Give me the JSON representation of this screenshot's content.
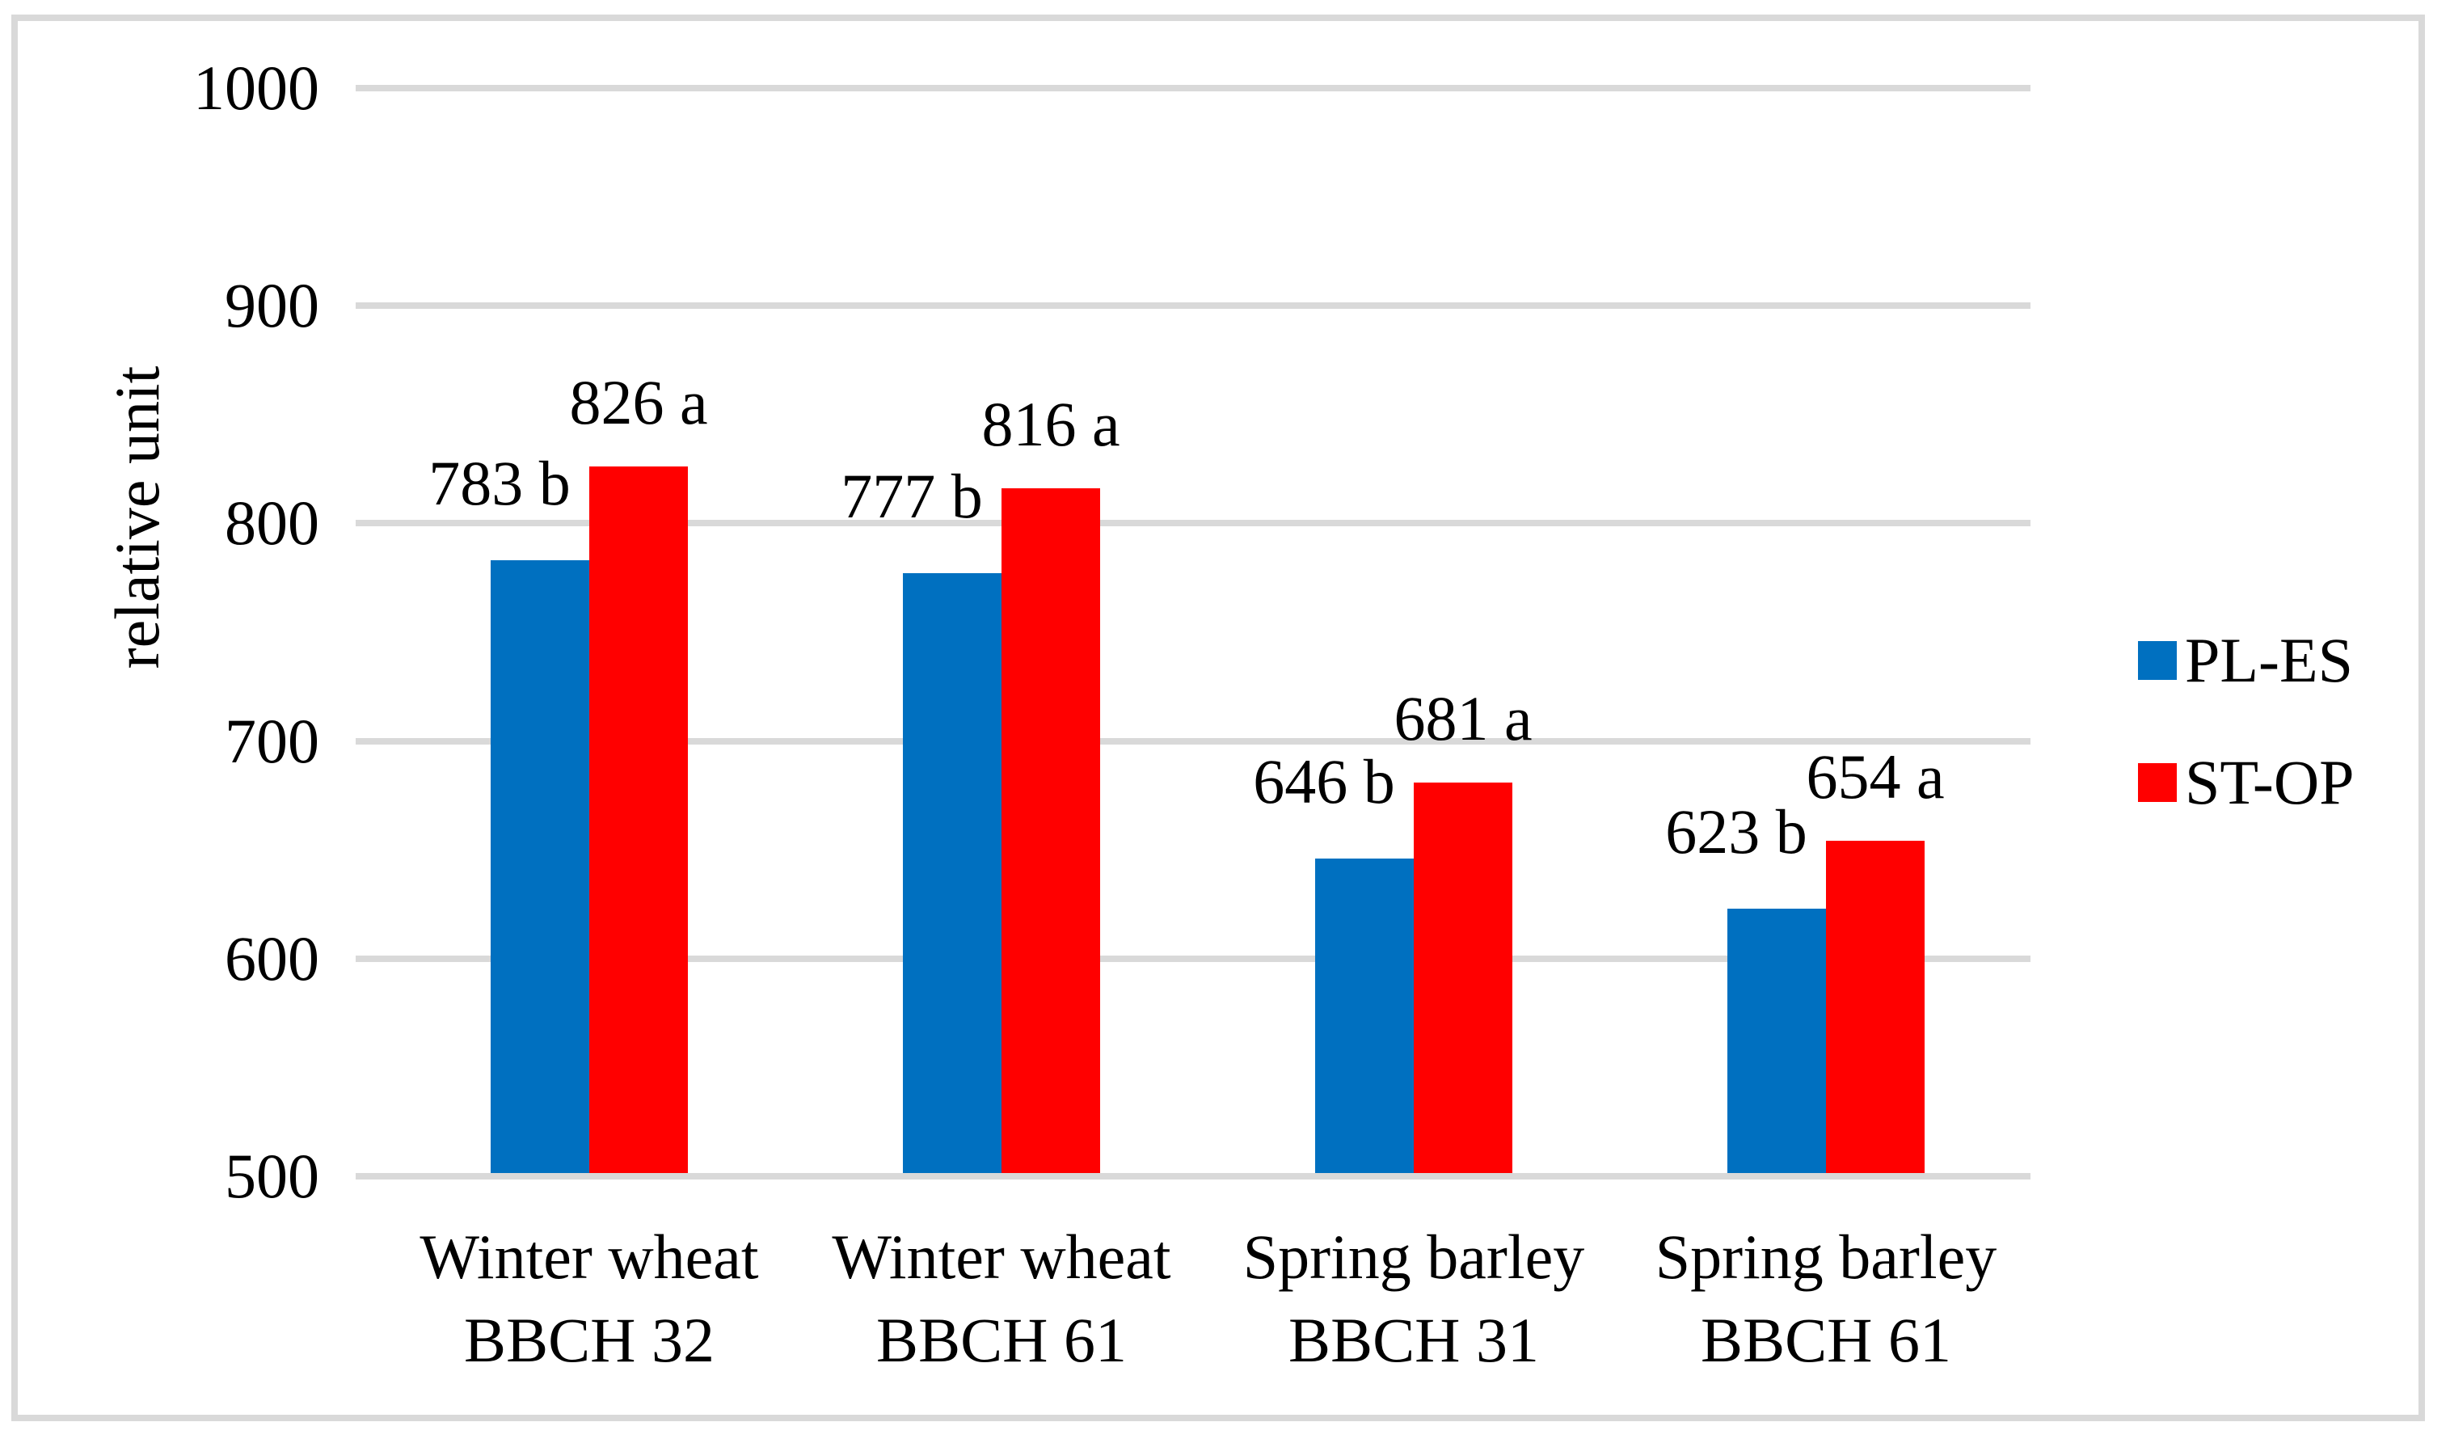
{
  "figure": {
    "background": "#FFFFFF",
    "frame_color": "#D9D9D9",
    "gridline_color": "#D9D9D9",
    "text_color": "#000000"
  },
  "chart_data": {
    "type": "bar",
    "title": "",
    "xlabel": "",
    "ylabel": "relative unit",
    "ylim": [
      500,
      1000
    ],
    "yticks": [
      500,
      600,
      700,
      800,
      900,
      1000
    ],
    "grid": true,
    "legend_position": "right",
    "categories": [
      [
        "Winter wheat",
        "BBCH 32"
      ],
      [
        "Winter wheat",
        "BBCH 61"
      ],
      [
        "Spring barley",
        "BBCH 31"
      ],
      [
        "Spring barley",
        "BBCH 61"
      ]
    ],
    "series": [
      {
        "name": "PL-ES",
        "color": "#0070C0",
        "values": [
          783,
          777,
          646,
          623
        ],
        "labels": [
          "783 b",
          "777 b",
          "646 b",
          "623 b"
        ]
      },
      {
        "name": "ST-OP",
        "color": "#FF0000",
        "values": [
          826,
          816,
          681,
          654
        ],
        "labels": [
          "826 a",
          "816 a",
          "681 a",
          "654 a"
        ]
      }
    ]
  }
}
